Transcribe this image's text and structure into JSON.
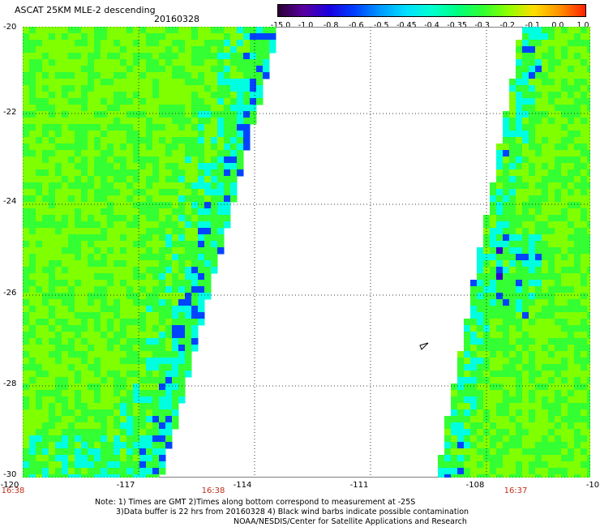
{
  "header": {
    "title": "ASCAT 25KM MLE-2 descending",
    "date": "20160328"
  },
  "colorbar": {
    "labels": [
      "-15.0",
      "-1.0",
      "-0.8",
      "-0.6",
      "-0.5",
      "-0.45",
      "-0.4",
      "-0.35",
      "-0.3",
      "-0.2",
      "-0.1",
      "0.0",
      "1.0"
    ],
    "colors": [
      "#2a0033",
      "#5a00a0",
      "#1a00e0",
      "#0040ff",
      "#0099ff",
      "#00e0ff",
      "#00ffd0",
      "#00ff80",
      "#30ff30",
      "#90ff00",
      "#ffdd00",
      "#ff9000",
      "#ff2000"
    ]
  },
  "map": {
    "lat_ticks": [
      "-20",
      "-22",
      "-24",
      "-26",
      "-28",
      "-30"
    ],
    "lon_ticks": [
      "-120",
      "-117",
      "-114",
      "-111",
      "-108",
      "-10"
    ],
    "times": [
      "16:38",
      "16:38",
      "16:37"
    ],
    "colors": {
      "green": "#33ff33",
      "lime": "#80ff00",
      "cyan": "#00ffe0",
      "blue": "#0044ff",
      "violet": "#3300cc"
    }
  },
  "notes": [
    "Note: 1) Times are GMT 2)Times along bottom correspond to measurement at -25S",
    "3)Data buffer is 22 hrs from 20160328 4) Black wind barbs indicate possible contamination",
    "NOAA/NESDIS/Center for Satellite Applications and Research"
  ]
}
